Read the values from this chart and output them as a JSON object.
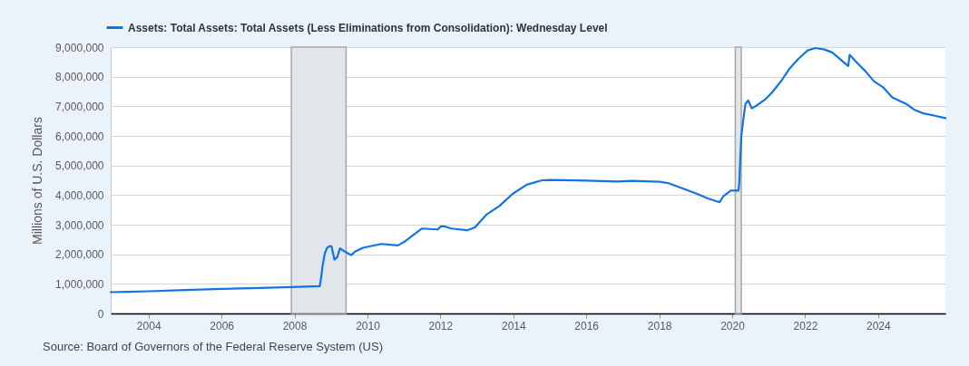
{
  "chart_data": {
    "type": "line",
    "x": [
      "2002-12-18",
      "2003-06-04",
      "2004-01-07",
      "2005-01-05",
      "2006-01-04",
      "2007-01-03",
      "2007-12-05",
      "2008-09-10",
      "2008-09-24",
      "2008-10-08",
      "2008-10-29",
      "2008-11-19",
      "2008-12-17",
      "2009-01-07",
      "2009-02-04",
      "2009-03-04",
      "2009-04-01",
      "2009-05-06",
      "2009-06-10",
      "2009-07-22",
      "2009-09-02",
      "2009-11-18",
      "2010-05-19",
      "2010-11-03",
      "2011-01-19",
      "2011-06-29",
      "2011-12-07",
      "2012-01-04",
      "2012-02-15",
      "2012-04-18",
      "2012-09-26",
      "2012-12-12",
      "2013-04-10",
      "2013-08-14",
      "2013-12-25",
      "2014-05-14",
      "2014-10-15",
      "2015-01-07",
      "2016-01-06",
      "2016-11-09",
      "2017-04-05",
      "2018-01-03",
      "2018-04-04",
      "2018-09-05",
      "2019-01-16",
      "2019-05-01",
      "2019-08-28",
      "2019-10-02",
      "2019-12-18",
      "2020-03-04",
      "2020-03-11",
      "2020-04-01",
      "2020-04-22",
      "2020-05-13",
      "2020-06-10",
      "2020-07-15",
      "2020-08-26",
      "2020-11-25",
      "2021-01-27",
      "2021-04-28",
      "2021-07-28",
      "2021-10-27",
      "2022-01-26",
      "2022-04-13",
      "2022-07-13",
      "2022-09-28",
      "2022-12-28",
      "2023-03-08",
      "2023-03-22",
      "2023-05-24",
      "2023-08-23",
      "2023-11-22",
      "2024-02-21",
      "2024-05-22",
      "2024-10-09",
      "2024-12-25",
      "2025-03-19",
      "2025-07-23",
      "2025-11-05"
    ],
    "series": [
      {
        "name": "Assets: Total Assets: Total Assets (Less Eliminations from Consolidation): Wednesday Level",
        "color": "#1174e6",
        "values": [
          720000,
          730000,
          750000,
          790000,
          830000,
          860000,
          890000,
          920000,
          1200000,
          1600000,
          2000000,
          2200000,
          2280000,
          2260000,
          1820000,
          1900000,
          2200000,
          2120000,
          2050000,
          1970000,
          2100000,
          2220000,
          2350000,
          2300000,
          2450000,
          2870000,
          2840000,
          2940000,
          2940000,
          2870000,
          2810000,
          2910000,
          3350000,
          3630000,
          4040000,
          4350000,
          4500000,
          4510000,
          4490000,
          4460000,
          4480000,
          4450000,
          4400000,
          4210000,
          4040000,
          3890000,
          3760000,
          3950000,
          4150000,
          4150000,
          4370000,
          6000000,
          6570000,
          7080000,
          7200000,
          6930000,
          7010000,
          7230000,
          7440000,
          7820000,
          8270000,
          8610000,
          8890000,
          8970000,
          8920000,
          8820000,
          8560000,
          8360000,
          8740000,
          8510000,
          8200000,
          7840000,
          7640000,
          7300000,
          7080000,
          6890000,
          6770000,
          6680000,
          6600000
        ]
      }
    ],
    "ylabel": "Millions of U.S. Dollars",
    "xlim": [
      "2002-12-18",
      "2025-11-05"
    ],
    "xticks": [
      "2004",
      "2006",
      "2008",
      "2010",
      "2012",
      "2014",
      "2016",
      "2018",
      "2020",
      "2022",
      "2024"
    ],
    "ylim": [
      0,
      9000000
    ],
    "yticks": [
      0,
      {
        "value": 1000000,
        "label": "1,000,000"
      },
      {
        "value": 2000000,
        "label": "2,000,000"
      },
      {
        "value": 3000000,
        "label": "3,000,000"
      },
      {
        "value": 4000000,
        "label": "4,000,000"
      },
      {
        "value": 5000000,
        "label": "5,000,000"
      },
      {
        "value": 6000000,
        "label": "6,000,000"
      },
      {
        "value": 7000000,
        "label": "7,000,000"
      },
      {
        "value": 8000000,
        "label": "8,000,000"
      },
      {
        "value": 9000000,
        "label": "9,000,000"
      }
    ],
    "bands": [
      {
        "axis": "x",
        "from": "2007-12-01",
        "to": "2009-06-01",
        "color": "#e1e6ea"
      },
      {
        "axis": "x",
        "from": "2020-02-01",
        "to": "2020-04-01",
        "color": "#e1e6ea"
      }
    ],
    "grid": "y",
    "legend": "top left",
    "annotations": [
      "Source: Board of Governors of the Federal Reserve System (US)"
    ]
  }
}
